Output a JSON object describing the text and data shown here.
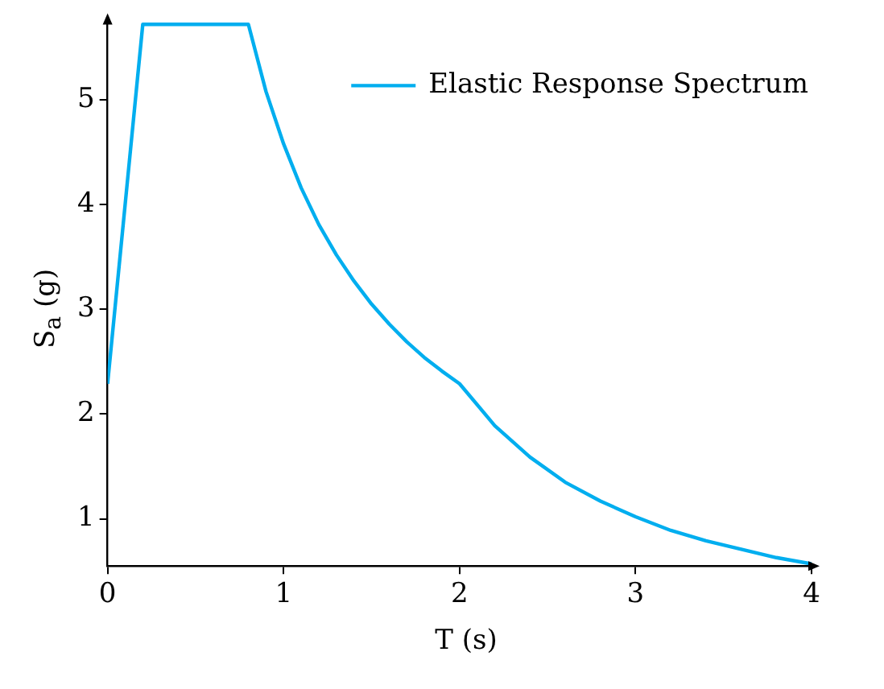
{
  "chart_data": {
    "type": "line",
    "xlabel": "T (s)",
    "ylabel": "S$_{a}$ (g)",
    "x": [
      0,
      0.2,
      0.8,
      0.9,
      1.0,
      1.1,
      1.2,
      1.3,
      1.4,
      1.5,
      1.6,
      1.7,
      1.8,
      1.9,
      2.0,
      2.2,
      2.4,
      2.6,
      2.8,
      3.0,
      3.2,
      3.4,
      3.6,
      3.8,
      4.0
    ],
    "series": [
      {
        "name": "Elastic Response Spectrum",
        "color": "#00aeef",
        "values": [
          2.29,
          5.72,
          5.72,
          5.08,
          4.58,
          4.16,
          3.81,
          3.52,
          3.27,
          3.05,
          2.86,
          2.69,
          2.54,
          2.41,
          2.29,
          1.89,
          1.59,
          1.35,
          1.17,
          1.02,
          0.89,
          0.79,
          0.71,
          0.63,
          0.57
        ]
      }
    ],
    "xlim": [
      0,
      4
    ],
    "xticks": [
      0,
      1,
      2,
      3,
      4
    ],
    "ylim": [
      0.55,
      5.75
    ],
    "yticks": [
      1,
      2,
      3,
      4,
      5
    ],
    "grid": false,
    "legend": "top right",
    "marker": "none",
    "line_style": "solid"
  }
}
